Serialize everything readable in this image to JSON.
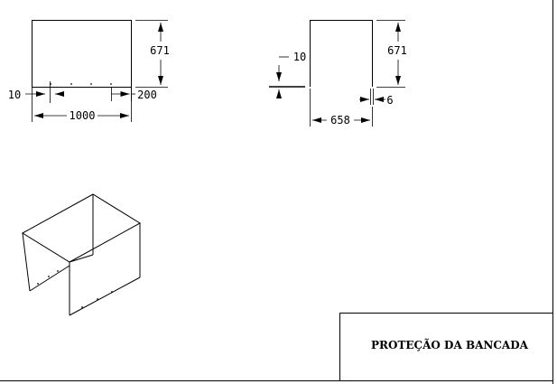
{
  "drawing": {
    "title_block": {
      "title": "PROTEÇÃO DA BANCADA"
    },
    "front_view": {
      "height": "671",
      "width": "1000",
      "left_offset": "10",
      "right_offset": "200"
    },
    "side_view": {
      "height": "671",
      "width": "658",
      "top_offset": "10",
      "bottom_offset": "6"
    }
  }
}
